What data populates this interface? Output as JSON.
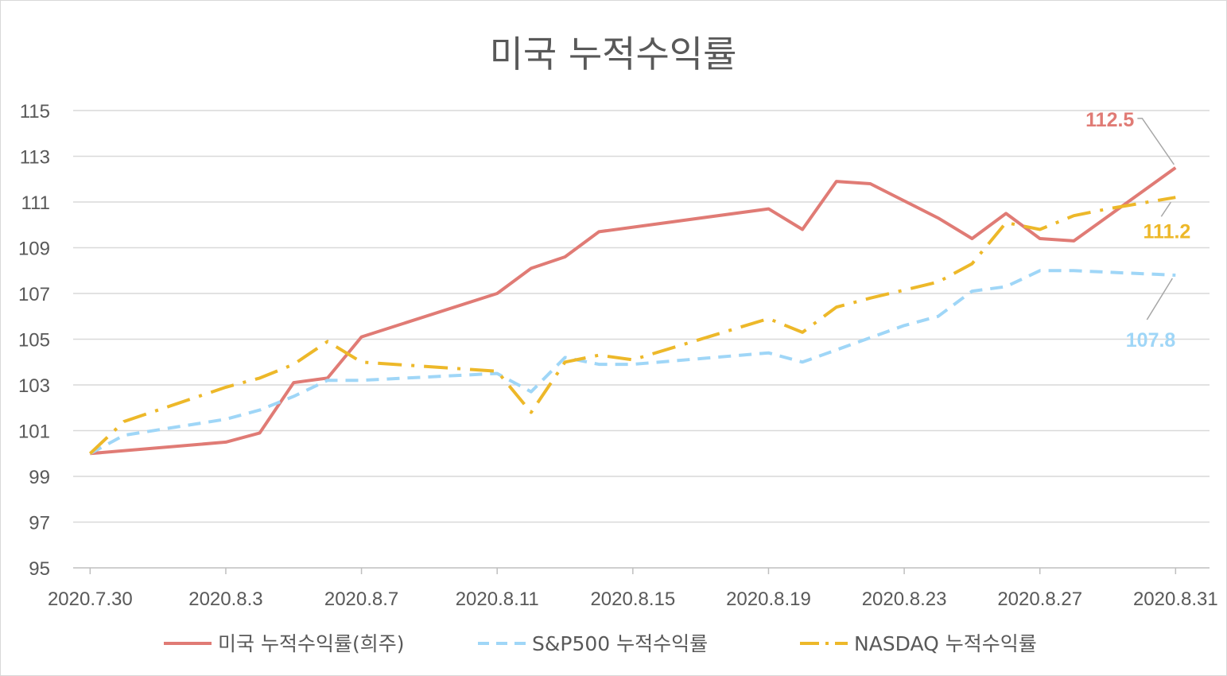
{
  "chart_data": {
    "type": "line",
    "title": "미국 누적수익률",
    "xlabel": "",
    "ylabel": "",
    "ylim": [
      95,
      115
    ],
    "y_ticks": [
      "95",
      "97",
      "99",
      "101",
      "103",
      "105",
      "107",
      "109",
      "111",
      "113",
      "115"
    ],
    "x_tick_labels": [
      "2020.7.30",
      "2020.8.3",
      "2020.8.7",
      "2020.8.11",
      "2020.8.15",
      "2020.8.19",
      "2020.8.23",
      "2020.8.27",
      "2020.8.31"
    ],
    "x_tick_days": [
      0,
      4,
      8,
      12,
      16,
      20,
      24,
      28,
      32
    ],
    "x_range_days": [
      -0.5,
      33
    ],
    "grid": true,
    "legend_position": "bottom",
    "series": [
      {
        "name": "미국 누적수익률(희주)",
        "color": "#E07B75",
        "dash": "solid",
        "x_days": [
          0,
          4,
          5,
          6,
          7,
          8,
          12,
          13,
          14,
          15,
          20,
          21,
          22,
          23,
          25,
          26,
          27,
          28,
          29,
          32
        ],
        "values": [
          100.0,
          100.5,
          100.9,
          103.1,
          103.3,
          105.1,
          107.0,
          108.1,
          108.6,
          109.7,
          110.7,
          109.8,
          111.9,
          111.8,
          110.3,
          109.4,
          110.5,
          109.4,
          109.3,
          112.5
        ]
      },
      {
        "name": "S&P500 누적수익률",
        "color": "#9FD6F7",
        "dash": "dash",
        "x_days": [
          0,
          1,
          4,
          5,
          6,
          7,
          8,
          12,
          13,
          14,
          15,
          16,
          20,
          21,
          24,
          25,
          26,
          27,
          28,
          29,
          32
        ],
        "values": [
          100.0,
          100.8,
          101.5,
          101.9,
          102.5,
          103.2,
          103.2,
          103.5,
          102.7,
          104.2,
          103.9,
          103.9,
          104.4,
          104.0,
          105.6,
          106.0,
          107.1,
          107.3,
          108.0,
          108.0,
          107.8
        ]
      },
      {
        "name": "NASDAQ 누적수익률",
        "color": "#EDB829",
        "dash": "dashdot",
        "x_days": [
          0,
          1,
          4,
          5,
          6,
          7,
          8,
          12,
          13,
          14,
          15,
          16,
          20,
          21,
          22,
          23,
          25,
          26,
          27,
          28,
          29,
          30,
          32
        ],
        "values": [
          100.0,
          101.4,
          102.9,
          103.3,
          103.9,
          104.9,
          104.0,
          103.6,
          101.8,
          104.0,
          104.3,
          104.1,
          105.9,
          105.3,
          106.4,
          106.8,
          107.5,
          108.3,
          110.1,
          109.8,
          110.4,
          110.7,
          111.2
        ]
      }
    ],
    "data_labels": [
      {
        "series": 0,
        "text": "112.5",
        "color": "#E07B75"
      },
      {
        "series": 2,
        "text": "111.2",
        "color": "#EDB829"
      },
      {
        "series": 1,
        "text": "107.8",
        "color": "#9FD6F7"
      }
    ]
  }
}
